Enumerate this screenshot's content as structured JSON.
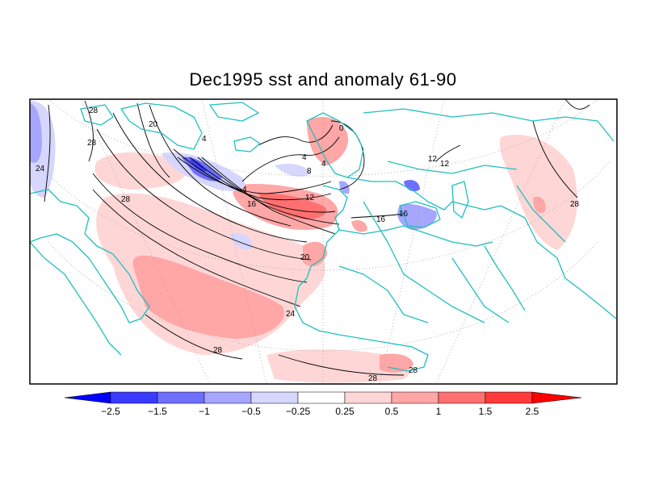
{
  "title": "Dec1995 sst and anomaly 61-90",
  "contour_labels": [
    "28",
    "28",
    "24",
    "20",
    "28",
    "4",
    "0",
    "4",
    "4",
    "8",
    "4",
    "12",
    "16",
    "12",
    "16",
    "16",
    "20",
    "24",
    "28",
    "28",
    "28",
    "12",
    "28"
  ],
  "colorbar": {
    "tick_labels": [
      "−2.5",
      "−1.5",
      "−1",
      "−0.5",
      "−0.25",
      "0.25",
      "0.5",
      "1",
      "1.5",
      "2.5"
    ],
    "colors": [
      "#0000ff",
      "#3a3aff",
      "#6e6eff",
      "#a6a6ff",
      "#d6d6ff",
      "#ffffff",
      "#ffd6d6",
      "#ffa6a6",
      "#ff7070",
      "#ff3a3a",
      "#ff0000"
    ]
  },
  "colors": {
    "coastline": "#1fbfbf",
    "contour": "#000000",
    "graticule": "#a0a0a0",
    "frame": "#000000"
  }
}
